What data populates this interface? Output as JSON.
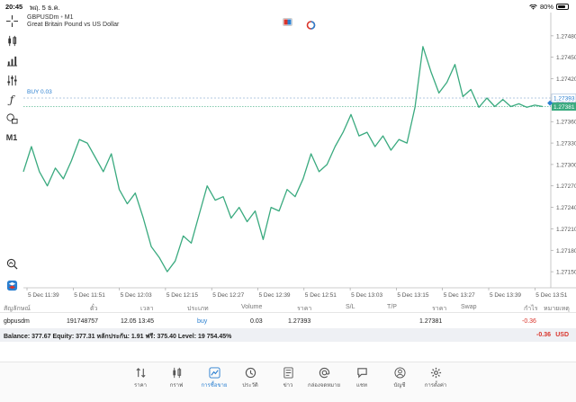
{
  "status_bar": {
    "time": "20:45",
    "date": "พฤ. 5 ธ.ค.",
    "battery": "80%",
    "battery_level": 0.8
  },
  "chart": {
    "symbol": "GBPUSDm",
    "timeframe": "M1",
    "description": "Great Britain Pound vs US Dollar",
    "buy_label": "BUY 0.03",
    "bid_price": "1.27393",
    "ask_price": "1.27381",
    "line_color": "#3aaa7f",
    "toolbar_items": [
      "crosshair-icon",
      "candles-icon",
      "indicators-icon",
      "settings-sliders-icon",
      "function-icon",
      "objects-icon",
      "M1",
      "zoom-icon",
      "mt5-logo-icon"
    ]
  },
  "chart_data": {
    "type": "line",
    "x_ticks": [
      "5 Dec 11:39",
      "5 Dec 11:51",
      "5 Dec 12:03",
      "5 Dec 12:15",
      "5 Dec 12:27",
      "5 Dec 12:39",
      "5 Dec 12:51",
      "5 Dec 13:03",
      "5 Dec 13:15",
      "5 Dec 13:27",
      "5 Dec 13:39",
      "5 Dec 13:51"
    ],
    "y_ticks": [
      1.2748,
      1.2745,
      1.2742,
      1.2739,
      1.2736,
      1.2733,
      1.273,
      1.2727,
      1.2724,
      1.2721,
      1.2718,
      1.2715
    ],
    "ylim": [
      1.2713,
      1.27505
    ],
    "xlim": [
      0,
      132
    ],
    "x": [
      0,
      2,
      4,
      6,
      8,
      10,
      12,
      14,
      16,
      18,
      20,
      22,
      24,
      26,
      28,
      30,
      32,
      34,
      36,
      38,
      40,
      42,
      44,
      46,
      48,
      50,
      52,
      54,
      56,
      58,
      60,
      62,
      64,
      66,
      68,
      70,
      72,
      74,
      76,
      78,
      80,
      82,
      84,
      86,
      88,
      90,
      92,
      94,
      96,
      98,
      100,
      102,
      104,
      106,
      108,
      110,
      112,
      114,
      116,
      118,
      120,
      122,
      124,
      126,
      128,
      130
    ],
    "y": [
      1.2729,
      1.27325,
      1.2729,
      1.2727,
      1.27295,
      1.2728,
      1.27305,
      1.27335,
      1.2733,
      1.2731,
      1.2729,
      1.27315,
      1.27265,
      1.27245,
      1.2726,
      1.27225,
      1.27185,
      1.2717,
      1.2715,
      1.27165,
      1.272,
      1.2719,
      1.2723,
      1.2727,
      1.2725,
      1.27255,
      1.27225,
      1.2724,
      1.2722,
      1.27235,
      1.27195,
      1.2724,
      1.27235,
      1.27265,
      1.27255,
      1.2728,
      1.27315,
      1.2729,
      1.273,
      1.27325,
      1.27345,
      1.2737,
      1.2734,
      1.27345,
      1.27325,
      1.2734,
      1.2732,
      1.27335,
      1.2733,
      1.2738,
      1.27465,
      1.2743,
      1.274,
      1.27415,
      1.2744,
      1.27395,
      1.27405,
      1.2738,
      1.27393,
      1.27381,
      1.27391,
      1.27381,
      1.27385,
      1.2738,
      1.27383,
      1.27381
    ],
    "grid": false
  },
  "table": {
    "headers": [
      "สัญลักษณ์",
      "ตั๋ว",
      "เวลา",
      "ประเภท",
      "Volume",
      "ราคา",
      "S/L",
      "T/P",
      "ราคา",
      "Swap",
      "กำไร",
      "หมายเหตุ"
    ],
    "row": {
      "symbol": "gbpusdm",
      "ticket": "191748757",
      "time": "12.05 13:45",
      "type": "buy",
      "volume": "0.03",
      "price_open": "1.27393",
      "sl": "",
      "tp": "",
      "price_current": "1.27381",
      "swap": "",
      "profit": "-0.36",
      "comment": ""
    },
    "balance_text": "Balance: 377.67 Equity: 377.31 หลักประกัน: 1.91 ฟรี: 375.40 Level: 19 754.45%",
    "total_profit": "-0.36",
    "currency": "USD"
  },
  "tabs": [
    {
      "label": "ราคา",
      "icon": "quotes-icon"
    },
    {
      "label": "กราฟ",
      "icon": "chart-icon"
    },
    {
      "label": "การซื้อขาย",
      "icon": "trade-icon"
    },
    {
      "label": "ประวัติ",
      "icon": "history-icon"
    },
    {
      "label": "ข่าว",
      "icon": "news-icon"
    },
    {
      "label": "กล่องจดหมาย",
      "icon": "mailbox-icon"
    },
    {
      "label": "แชท",
      "icon": "chat-icon"
    },
    {
      "label": "บัญชี",
      "icon": "account-icon"
    },
    {
      "label": "การตั้งค่า",
      "icon": "settings-icon"
    }
  ],
  "active_tab": "การซื้อขาย"
}
